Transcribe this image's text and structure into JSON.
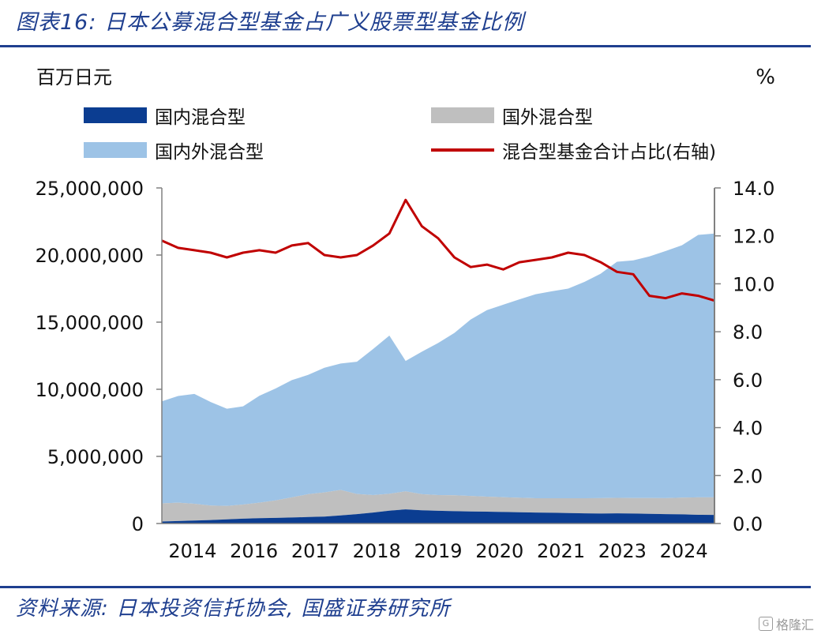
{
  "title": "图表16:  日本公募混合型基金占广义股票型基金比例",
  "source": "资料来源:  日本投资信托协会,  国盛证券研究所",
  "watermark": "格隆汇",
  "colors": {
    "domestic": "#0b3d91",
    "foreign": "#bfbfbf",
    "mixed": "#9dc3e6",
    "ratio": "#c00000",
    "brand": "#1f3f8f"
  },
  "chart_data": {
    "type": "area",
    "left_unit": "百万日元",
    "right_unit": "%",
    "x_ticks": [
      "2014",
      "2016",
      "2017",
      "2018",
      "2019",
      "2020",
      "2021",
      "2023",
      "2024"
    ],
    "y_left_ticks": [
      "0",
      "5,000,000",
      "10,000,000",
      "15,000,000",
      "20,000,000",
      "25,000,000"
    ],
    "y_right_ticks": [
      "0.0",
      "2.0",
      "4.0",
      "6.0",
      "8.0",
      "10.0",
      "12.0",
      "14.0"
    ],
    "ylim_left": [
      0,
      25000000
    ],
    "ylim_right": [
      0,
      14
    ],
    "legend": {
      "domestic": "国内混合型",
      "foreign": "国外混合型",
      "mixed": "国内外混合型",
      "ratio": "混合型基金合计占比(右轴)"
    },
    "series": [
      {
        "name": "国内混合型",
        "kind": "stacked-area",
        "values": [
          150000,
          180000,
          220000,
          260000,
          310000,
          360000,
          400000,
          420000,
          450000,
          480000,
          520000,
          600000,
          700000,
          820000,
          960000,
          1050000,
          980000,
          950000,
          920000,
          900000,
          880000,
          860000,
          840000,
          820000,
          800000,
          780000,
          760000,
          740000,
          760000,
          740000,
          720000,
          700000,
          680000,
          650000,
          640000
        ]
      },
      {
        "name": "国外混合型",
        "kind": "stacked-area",
        "values": [
          1350000,
          1370000,
          1250000,
          1080000,
          1000000,
          1050000,
          1150000,
          1300000,
          1500000,
          1700000,
          1800000,
          1900000,
          1500000,
          1300000,
          1250000,
          1350000,
          1200000,
          1170000,
          1180000,
          1150000,
          1120000,
          1100000,
          1080000,
          1060000,
          1080000,
          1100000,
          1120000,
          1150000,
          1150000,
          1160000,
          1180000,
          1190000,
          1250000,
          1300000,
          1310000
        ]
      },
      {
        "name": "国内外混合型",
        "kind": "stacked-area",
        "values": [
          7600000,
          7950000,
          8180000,
          7710000,
          7240000,
          7320000,
          7960000,
          8340000,
          8730000,
          8890000,
          9280000,
          9420000,
          9850000,
          10880000,
          11790000,
          9710000,
          10620000,
          11330000,
          12100000,
          13150000,
          13900000,
          14340000,
          14780000,
          15200000,
          15420000,
          15620000,
          16120000,
          16720000,
          17590000,
          17700000,
          18000000,
          18410000,
          18800000,
          19550000,
          19650000
        ]
      },
      {
        "name": "混合型基金合计占比(右轴)",
        "kind": "line-right-axis",
        "values": [
          11.8,
          11.5,
          11.4,
          11.3,
          11.1,
          11.3,
          11.4,
          11.3,
          11.6,
          11.7,
          11.2,
          11.1,
          11.2,
          11.6,
          12.1,
          13.5,
          12.4,
          11.9,
          11.1,
          10.7,
          10.8,
          10.6,
          10.9,
          11.0,
          11.1,
          11.3,
          11.2,
          10.9,
          10.5,
          10.4,
          9.5,
          9.4,
          9.6,
          9.5,
          9.3
        ]
      }
    ],
    "grid": false
  }
}
